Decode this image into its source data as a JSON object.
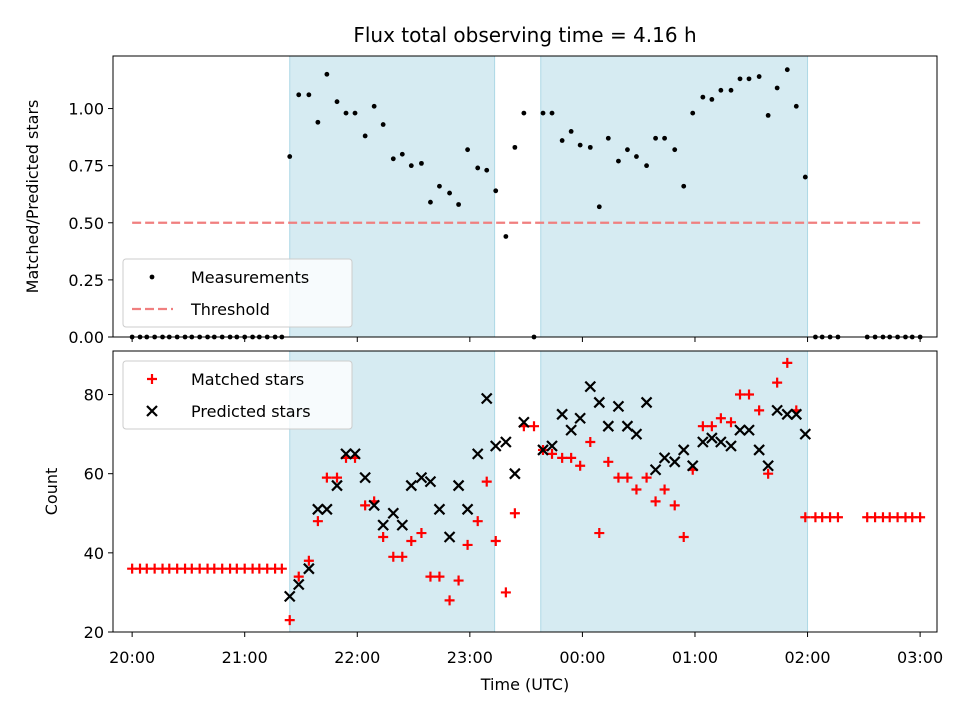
{
  "chart_data": {
    "type": "scatter",
    "title": "Flux total observing time = 4.16 h",
    "xlabel": "Time (UTC)",
    "x_ticks": [
      "20:00",
      "21:00",
      "22:00",
      "23:00",
      "00:00",
      "01:00",
      "02:00",
      "03:00"
    ],
    "x_range_hours": [
      19.83,
      27.15
    ],
    "shaded_intervals_hours": [
      [
        21.4,
        23.22
      ],
      [
        23.63,
        26.0
      ]
    ],
    "shade_color": "#add8e6",
    "panels": [
      {
        "id": "ratio",
        "ylabel": "Matched/Predicted stars",
        "ylim": [
          0,
          1.23
        ],
        "yticks": [
          0.0,
          0.25,
          0.5,
          0.75,
          1.0
        ],
        "ytick_labels": [
          "0.00",
          "0.25",
          "0.50",
          "0.75",
          "1.00"
        ],
        "legend": {
          "position": "lower-left",
          "entries": [
            "Measurements",
            "Threshold"
          ]
        },
        "threshold": {
          "name": "Threshold",
          "value": 0.5,
          "x_range": [
            20.0,
            27.0
          ],
          "color": "#f07f7f"
        },
        "series": [
          {
            "name": "Measurements",
            "marker": "dot",
            "color": "#000000",
            "points": [
              [
                20.0,
                0
              ],
              [
                20.07,
                0
              ],
              [
                20.13,
                0
              ],
              [
                20.2,
                0
              ],
              [
                20.27,
                0
              ],
              [
                20.33,
                0
              ],
              [
                20.4,
                0
              ],
              [
                20.47,
                0
              ],
              [
                20.53,
                0
              ],
              [
                20.6,
                0
              ],
              [
                20.67,
                0
              ],
              [
                20.73,
                0
              ],
              [
                20.8,
                0
              ],
              [
                20.87,
                0
              ],
              [
                20.93,
                0
              ],
              [
                21.0,
                0
              ],
              [
                21.07,
                0
              ],
              [
                21.13,
                0
              ],
              [
                21.2,
                0
              ],
              [
                21.27,
                0
              ],
              [
                21.33,
                0
              ],
              [
                21.4,
                0.79
              ],
              [
                21.48,
                1.06
              ],
              [
                21.57,
                1.06
              ],
              [
                21.65,
                0.94
              ],
              [
                21.73,
                1.15
              ],
              [
                21.82,
                1.03
              ],
              [
                21.9,
                0.98
              ],
              [
                21.98,
                0.98
              ],
              [
                22.07,
                0.88
              ],
              [
                22.15,
                1.01
              ],
              [
                22.23,
                0.93
              ],
              [
                22.32,
                0.78
              ],
              [
                22.4,
                0.8
              ],
              [
                22.48,
                0.75
              ],
              [
                22.57,
                0.76
              ],
              [
                22.65,
                0.59
              ],
              [
                22.73,
                0.66
              ],
              [
                22.82,
                0.63
              ],
              [
                22.9,
                0.58
              ],
              [
                22.98,
                0.82
              ],
              [
                23.07,
                0.74
              ],
              [
                23.15,
                0.73
              ],
              [
                23.23,
                0.64
              ],
              [
                23.32,
                0.44
              ],
              [
                23.4,
                0.83
              ],
              [
                23.48,
                0.98
              ],
              [
                23.57,
                0.0
              ],
              [
                23.65,
                0.98
              ],
              [
                23.73,
                0.98
              ],
              [
                23.82,
                0.86
              ],
              [
                23.9,
                0.9
              ],
              [
                23.98,
                0.84
              ],
              [
                24.07,
                0.83
              ],
              [
                24.15,
                0.57
              ],
              [
                24.23,
                0.87
              ],
              [
                24.32,
                0.77
              ],
              [
                24.4,
                0.82
              ],
              [
                24.48,
                0.79
              ],
              [
                24.57,
                0.75
              ],
              [
                24.65,
                0.87
              ],
              [
                24.73,
                0.87
              ],
              [
                24.82,
                0.82
              ],
              [
                24.9,
                0.66
              ],
              [
                24.98,
                0.98
              ],
              [
                25.07,
                1.05
              ],
              [
                25.15,
                1.04
              ],
              [
                25.23,
                1.08
              ],
              [
                25.32,
                1.08
              ],
              [
                25.4,
                1.13
              ],
              [
                25.48,
                1.13
              ],
              [
                25.57,
                1.14
              ],
              [
                25.65,
                0.97
              ],
              [
                25.73,
                1.09
              ],
              [
                25.82,
                1.17
              ],
              [
                25.9,
                1.01
              ],
              [
                25.98,
                0.7
              ],
              [
                26.07,
                0
              ],
              [
                26.13,
                0
              ],
              [
                26.2,
                0
              ],
              [
                26.27,
                0
              ],
              [
                26.53,
                0
              ],
              [
                26.6,
                0
              ],
              [
                26.67,
                0
              ],
              [
                26.73,
                0
              ],
              [
                26.8,
                0
              ],
              [
                26.87,
                0
              ],
              [
                26.93,
                0
              ],
              [
                27.0,
                0
              ]
            ]
          }
        ]
      },
      {
        "id": "count",
        "ylabel": "Count",
        "ylim": [
          20,
          91
        ],
        "yticks": [
          20,
          40,
          60,
          80
        ],
        "ytick_labels": [
          "20",
          "40",
          "60",
          "80"
        ],
        "legend": {
          "position": "top-left",
          "entries": [
            "Matched stars",
            "Predicted stars"
          ]
        },
        "series": [
          {
            "name": "Matched stars",
            "marker": "plus",
            "color": "#ff0000",
            "points": [
              [
                20.0,
                36
              ],
              [
                20.07,
                36
              ],
              [
                20.13,
                36
              ],
              [
                20.2,
                36
              ],
              [
                20.27,
                36
              ],
              [
                20.33,
                36
              ],
              [
                20.4,
                36
              ],
              [
                20.47,
                36
              ],
              [
                20.53,
                36
              ],
              [
                20.6,
                36
              ],
              [
                20.67,
                36
              ],
              [
                20.73,
                36
              ],
              [
                20.8,
                36
              ],
              [
                20.87,
                36
              ],
              [
                20.93,
                36
              ],
              [
                21.0,
                36
              ],
              [
                21.07,
                36
              ],
              [
                21.13,
                36
              ],
              [
                21.2,
                36
              ],
              [
                21.27,
                36
              ],
              [
                21.33,
                36
              ],
              [
                21.4,
                23
              ],
              [
                21.48,
                34
              ],
              [
                21.57,
                38
              ],
              [
                21.65,
                48
              ],
              [
                21.73,
                59
              ],
              [
                21.82,
                59
              ],
              [
                21.9,
                64
              ],
              [
                21.98,
                64
              ],
              [
                22.07,
                52
              ],
              [
                22.15,
                53
              ],
              [
                22.23,
                44
              ],
              [
                22.32,
                39
              ],
              [
                22.4,
                39
              ],
              [
                22.48,
                43
              ],
              [
                22.57,
                45
              ],
              [
                22.65,
                34
              ],
              [
                22.73,
                34
              ],
              [
                22.82,
                28
              ],
              [
                22.9,
                33
              ],
              [
                22.98,
                42
              ],
              [
                23.07,
                48
              ],
              [
                23.15,
                58
              ],
              [
                23.23,
                43
              ],
              [
                23.32,
                30
              ],
              [
                23.4,
                50
              ],
              [
                23.48,
                72
              ],
              [
                23.57,
                72
              ],
              [
                23.65,
                66
              ],
              [
                23.73,
                65
              ],
              [
                23.82,
                64
              ],
              [
                23.9,
                64
              ],
              [
                23.98,
                62
              ],
              [
                24.07,
                68
              ],
              [
                24.15,
                45
              ],
              [
                24.23,
                63
              ],
              [
                24.32,
                59
              ],
              [
                24.4,
                59
              ],
              [
                24.48,
                56
              ],
              [
                24.57,
                59
              ],
              [
                24.65,
                53
              ],
              [
                24.73,
                56
              ],
              [
                24.82,
                52
              ],
              [
                24.9,
                44
              ],
              [
                24.98,
                61
              ],
              [
                25.07,
                72
              ],
              [
                25.15,
                72
              ],
              [
                25.23,
                74
              ],
              [
                25.32,
                73
              ],
              [
                25.4,
                80
              ],
              [
                25.48,
                80
              ],
              [
                25.57,
                76
              ],
              [
                25.65,
                60
              ],
              [
                25.73,
                83
              ],
              [
                25.82,
                88
              ],
              [
                25.9,
                76
              ],
              [
                25.98,
                49
              ],
              [
                26.07,
                49
              ],
              [
                26.13,
                49
              ],
              [
                26.2,
                49
              ],
              [
                26.27,
                49
              ],
              [
                26.53,
                49
              ],
              [
                26.6,
                49
              ],
              [
                26.67,
                49
              ],
              [
                26.73,
                49
              ],
              [
                26.8,
                49
              ],
              [
                26.87,
                49
              ],
              [
                26.93,
                49
              ],
              [
                27.0,
                49
              ]
            ]
          },
          {
            "name": "Predicted stars",
            "marker": "x",
            "color": "#000000",
            "points": [
              [
                21.4,
                29
              ],
              [
                21.48,
                32
              ],
              [
                21.57,
                36
              ],
              [
                21.65,
                51
              ],
              [
                21.73,
                51
              ],
              [
                21.82,
                57
              ],
              [
                21.9,
                65
              ],
              [
                21.98,
                65
              ],
              [
                22.07,
                59
              ],
              [
                22.15,
                52
              ],
              [
                22.23,
                47
              ],
              [
                22.32,
                50
              ],
              [
                22.4,
                47
              ],
              [
                22.48,
                57
              ],
              [
                22.57,
                59
              ],
              [
                22.65,
                58
              ],
              [
                22.73,
                51
              ],
              [
                22.82,
                44
              ],
              [
                22.9,
                57
              ],
              [
                22.98,
                51
              ],
              [
                23.07,
                65
              ],
              [
                23.15,
                79
              ],
              [
                23.23,
                67
              ],
              [
                23.32,
                68
              ],
              [
                23.4,
                60
              ],
              [
                23.48,
                73
              ],
              [
                23.65,
                66
              ],
              [
                23.73,
                67
              ],
              [
                23.82,
                75
              ],
              [
                23.9,
                71
              ],
              [
                23.98,
                74
              ],
              [
                24.07,
                82
              ],
              [
                24.15,
                78
              ],
              [
                24.23,
                72
              ],
              [
                24.32,
                77
              ],
              [
                24.4,
                72
              ],
              [
                24.48,
                70
              ],
              [
                24.57,
                78
              ],
              [
                24.65,
                61
              ],
              [
                24.73,
                64
              ],
              [
                24.82,
                63
              ],
              [
                24.9,
                66
              ],
              [
                24.98,
                62
              ],
              [
                25.07,
                68
              ],
              [
                25.15,
                69
              ],
              [
                25.23,
                68
              ],
              [
                25.32,
                67
              ],
              [
                25.4,
                71
              ],
              [
                25.48,
                71
              ],
              [
                25.57,
                66
              ],
              [
                25.65,
                62
              ],
              [
                25.73,
                76
              ],
              [
                25.82,
                75
              ],
              [
                25.9,
                75
              ],
              [
                25.98,
                70
              ]
            ]
          }
        ]
      }
    ]
  }
}
